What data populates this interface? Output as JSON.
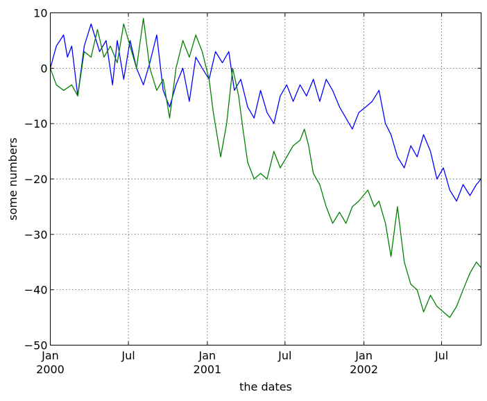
{
  "chart_data": {
    "type": "line",
    "xlabel": "the dates",
    "ylabel": "some numbers",
    "xlim": [
      "2000-01-01",
      "2002-10-01"
    ],
    "ylim": [
      -50,
      10
    ],
    "grid": true,
    "yticks": [
      10,
      0,
      -10,
      -20,
      -30,
      -40,
      -50
    ],
    "ytick_labels": [
      "10",
      "0",
      "−10",
      "−20",
      "−30",
      "−40",
      "−50"
    ],
    "xticks": [
      {
        "date": "2000-01-01",
        "line1": "Jan",
        "line2": "2000"
      },
      {
        "date": "2000-07-01",
        "line1": "Jul",
        "line2": ""
      },
      {
        "date": "2001-01-01",
        "line1": "Jan",
        "line2": "2001"
      },
      {
        "date": "2001-07-01",
        "line1": "Jul",
        "line2": ""
      },
      {
        "date": "2002-01-01",
        "line1": "Jan",
        "line2": "2002"
      },
      {
        "date": "2002-07-01",
        "line1": "Jul",
        "line2": ""
      }
    ],
    "series": [
      {
        "color": "#0000ff",
        "points": [
          [
            "2000-01-01",
            0
          ],
          [
            "2000-01-15",
            4
          ],
          [
            "2000-02-01",
            6
          ],
          [
            "2000-02-10",
            2
          ],
          [
            "2000-02-20",
            4
          ],
          [
            "2000-03-05",
            -5
          ],
          [
            "2000-03-20",
            4
          ],
          [
            "2000-04-05",
            8
          ],
          [
            "2000-04-25",
            3
          ],
          [
            "2000-05-10",
            5
          ],
          [
            "2000-05-25",
            -3
          ],
          [
            "2000-06-05",
            5
          ],
          [
            "2000-06-20",
            -2
          ],
          [
            "2000-07-05",
            5
          ],
          [
            "2000-07-20",
            0
          ],
          [
            "2000-08-05",
            -3
          ],
          [
            "2000-08-20",
            1
          ],
          [
            "2000-09-05",
            6
          ],
          [
            "2000-09-20",
            -4
          ],
          [
            "2000-10-05",
            -7
          ],
          [
            "2000-10-20",
            -3
          ],
          [
            "2000-11-05",
            0
          ],
          [
            "2000-11-20",
            -6
          ],
          [
            "2000-12-05",
            2
          ],
          [
            "2000-12-20",
            0
          ],
          [
            "2001-01-05",
            -2
          ],
          [
            "2001-01-20",
            3
          ],
          [
            "2001-02-05",
            1
          ],
          [
            "2001-02-20",
            3
          ],
          [
            "2001-03-05",
            -4
          ],
          [
            "2001-03-20",
            -2
          ],
          [
            "2001-04-05",
            -7
          ],
          [
            "2001-04-20",
            -9
          ],
          [
            "2001-05-05",
            -4
          ],
          [
            "2001-05-20",
            -8
          ],
          [
            "2001-06-05",
            -10
          ],
          [
            "2001-06-20",
            -5
          ],
          [
            "2001-07-05",
            -3
          ],
          [
            "2001-07-20",
            -6
          ],
          [
            "2001-08-05",
            -3
          ],
          [
            "2001-08-20",
            -5
          ],
          [
            "2001-09-05",
            -2
          ],
          [
            "2001-09-20",
            -6
          ],
          [
            "2001-10-05",
            -2
          ],
          [
            "2001-10-20",
            -4
          ],
          [
            "2001-11-05",
            -7
          ],
          [
            "2001-11-20",
            -9
          ],
          [
            "2001-12-05",
            -11
          ],
          [
            "2001-12-20",
            -8
          ],
          [
            "2002-01-05",
            -7
          ],
          [
            "2002-01-20",
            -6
          ],
          [
            "2002-02-05",
            -4
          ],
          [
            "2002-02-20",
            -10
          ],
          [
            "2002-03-05",
            -12
          ],
          [
            "2002-03-20",
            -16
          ],
          [
            "2002-04-05",
            -18
          ],
          [
            "2002-04-20",
            -14
          ],
          [
            "2002-05-05",
            -16
          ],
          [
            "2002-05-20",
            -12
          ],
          [
            "2002-06-05",
            -15
          ],
          [
            "2002-06-20",
            -20
          ],
          [
            "2002-07-05",
            -18
          ],
          [
            "2002-07-20",
            -22
          ],
          [
            "2002-08-05",
            -24
          ],
          [
            "2002-08-20",
            -21
          ],
          [
            "2002-09-05",
            -23
          ],
          [
            "2002-09-20",
            -21
          ],
          [
            "2002-10-01",
            -20
          ]
        ]
      },
      {
        "color": "#008000",
        "points": [
          [
            "2000-01-01",
            0
          ],
          [
            "2000-01-15",
            -3
          ],
          [
            "2000-02-01",
            -4
          ],
          [
            "2000-02-20",
            -3
          ],
          [
            "2000-03-05",
            -5
          ],
          [
            "2000-03-20",
            3
          ],
          [
            "2000-04-05",
            2
          ],
          [
            "2000-04-20",
            7
          ],
          [
            "2000-05-05",
            2
          ],
          [
            "2000-05-20",
            4
          ],
          [
            "2000-06-05",
            1
          ],
          [
            "2000-06-20",
            8
          ],
          [
            "2000-07-05",
            4
          ],
          [
            "2000-07-20",
            0
          ],
          [
            "2000-08-05",
            9
          ],
          [
            "2000-08-20",
            0
          ],
          [
            "2000-09-05",
            -4
          ],
          [
            "2000-09-20",
            -2
          ],
          [
            "2000-10-05",
            -9
          ],
          [
            "2000-10-20",
            0
          ],
          [
            "2000-11-05",
            5
          ],
          [
            "2000-11-20",
            2
          ],
          [
            "2000-12-05",
            6
          ],
          [
            "2000-12-20",
            3
          ],
          [
            "2001-01-05",
            -2
          ],
          [
            "2001-01-15",
            -8
          ],
          [
            "2001-02-01",
            -16
          ],
          [
            "2001-02-15",
            -10
          ],
          [
            "2001-03-01",
            0
          ],
          [
            "2001-03-15",
            -5
          ],
          [
            "2001-03-25",
            -11
          ],
          [
            "2001-04-05",
            -17
          ],
          [
            "2001-04-20",
            -20
          ],
          [
            "2001-05-05",
            -19
          ],
          [
            "2001-05-20",
            -20
          ],
          [
            "2001-06-05",
            -15
          ],
          [
            "2001-06-20",
            -18
          ],
          [
            "2001-07-05",
            -16
          ],
          [
            "2001-07-20",
            -14
          ],
          [
            "2001-08-05",
            -13
          ],
          [
            "2001-08-15",
            -11
          ],
          [
            "2001-08-25",
            -14
          ],
          [
            "2001-09-05",
            -19
          ],
          [
            "2001-09-20",
            -21
          ],
          [
            "2001-10-05",
            -25
          ],
          [
            "2001-10-20",
            -28
          ],
          [
            "2001-11-05",
            -26
          ],
          [
            "2001-11-20",
            -28
          ],
          [
            "2001-12-05",
            -25
          ],
          [
            "2001-12-20",
            -24
          ],
          [
            "2002-01-10",
            -22
          ],
          [
            "2002-01-25",
            -25
          ],
          [
            "2002-02-05",
            -24
          ],
          [
            "2002-02-20",
            -28
          ],
          [
            "2002-03-05",
            -34
          ],
          [
            "2002-03-20",
            -25
          ],
          [
            "2002-04-05",
            -35
          ],
          [
            "2002-04-20",
            -39
          ],
          [
            "2002-05-05",
            -40
          ],
          [
            "2002-05-20",
            -44
          ],
          [
            "2002-06-05",
            -41
          ],
          [
            "2002-06-20",
            -43
          ],
          [
            "2002-07-05",
            -44
          ],
          [
            "2002-07-20",
            -45
          ],
          [
            "2002-08-05",
            -43
          ],
          [
            "2002-08-20",
            -40
          ],
          [
            "2002-09-05",
            -37
          ],
          [
            "2002-09-20",
            -35
          ],
          [
            "2002-10-01",
            -36
          ]
        ]
      }
    ]
  }
}
